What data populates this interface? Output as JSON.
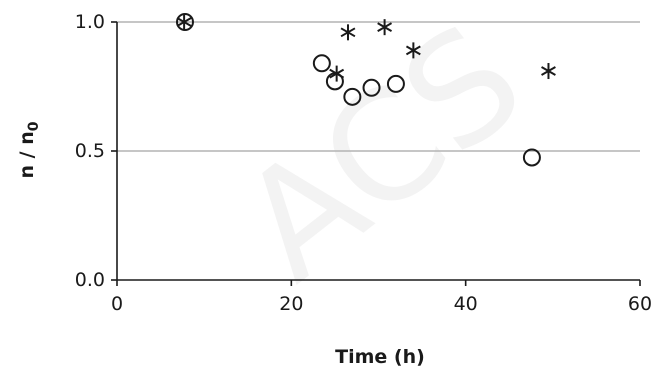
{
  "watermark": "ACS",
  "chart_data": {
    "type": "scatter",
    "title": "",
    "xlabel": "Time (h)",
    "ylabel": "n / n",
    "ylabel_subscript": "0",
    "xlim": [
      0,
      60
    ],
    "ylim": [
      0.0,
      1.0
    ],
    "xticks": [
      0,
      20,
      40,
      60
    ],
    "xtick_labels": [
      "0",
      "20",
      "40",
      "60"
    ],
    "yticks": [
      0.0,
      0.5,
      1.0
    ],
    "ytick_labels": [
      "0.0",
      "0.5",
      "1.0"
    ],
    "grid": "horizontal",
    "legend": "none",
    "color": "#1a1a1a",
    "series": [
      {
        "marker": "circle",
        "points": [
          {
            "x": 7.8,
            "y": 1.0
          },
          {
            "x": 23.5,
            "y": 0.84
          },
          {
            "x": 25.0,
            "y": 0.77
          },
          {
            "x": 27.0,
            "y": 0.71
          },
          {
            "x": 29.2,
            "y": 0.745
          },
          {
            "x": 32.0,
            "y": 0.76
          },
          {
            "x": 47.6,
            "y": 0.475
          }
        ]
      },
      {
        "marker": "asterisk",
        "points": [
          {
            "x": 7.7,
            "y": 1.0
          },
          {
            "x": 25.2,
            "y": 0.8
          },
          {
            "x": 26.5,
            "y": 0.96
          },
          {
            "x": 30.7,
            "y": 0.98
          },
          {
            "x": 34.0,
            "y": 0.89
          },
          {
            "x": 49.5,
            "y": 0.81
          }
        ]
      }
    ]
  }
}
